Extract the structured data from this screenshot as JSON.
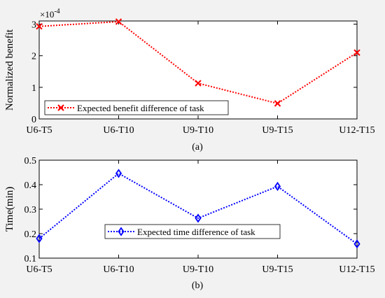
{
  "chart_data": [
    {
      "type": "line",
      "panel_caption": "(a)",
      "ylabel": "Normalized benefit",
      "exponent_label": "×10",
      "exponent_power": "-4",
      "categories": [
        "U6-T5",
        "U6-T10",
        "U9-T10",
        "U9-T15",
        "U12-T15"
      ],
      "ylim": [
        0,
        3.1
      ],
      "yticks": [
        0,
        1,
        2,
        3
      ],
      "ytick_labels": [
        "0",
        "1",
        "2",
        "3"
      ],
      "grid": false,
      "legend_position": "bottom-left",
      "series": [
        {
          "name": "Expected benefit difference of task",
          "values": [
            2.93,
            3.08,
            1.13,
            0.49,
            2.1
          ],
          "color": "#ff0000",
          "marker": "x",
          "line_style": "dotted"
        }
      ]
    },
    {
      "type": "line",
      "panel_caption": "(b)",
      "ylabel": "Time(min)",
      "categories": [
        "U6-T5",
        "U6-T10",
        "U9-T10",
        "U9-T15",
        "U12-T15"
      ],
      "ylim": [
        0.1,
        0.5
      ],
      "yticks": [
        0.1,
        0.2,
        0.3,
        0.4,
        0.5
      ],
      "ytick_labels": [
        "0.1",
        "0.2",
        "0.3",
        "0.4",
        "0.5"
      ],
      "grid": false,
      "legend_position": "bottom-center",
      "series": [
        {
          "name": "Expected time difference of task",
          "values": [
            0.18,
            0.446,
            0.263,
            0.393,
            0.158
          ],
          "color": "#0000ff",
          "marker": "diamond",
          "line_style": "dotted"
        }
      ]
    }
  ]
}
